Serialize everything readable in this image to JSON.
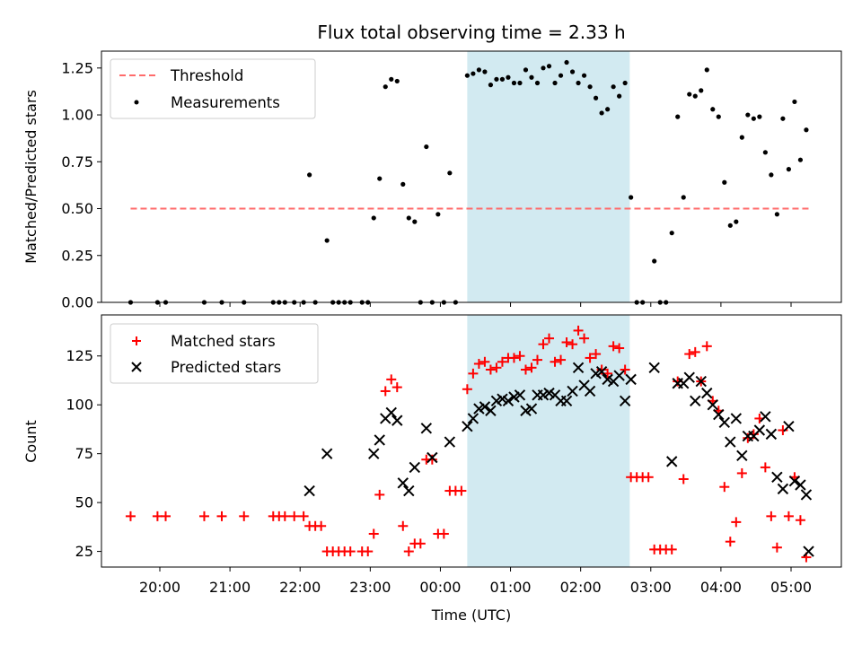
{
  "colors": {
    "threshold": "#ff6b6b",
    "measurements": "#000000",
    "matched": "#ff0000",
    "predicted": "#000000",
    "shade": "#add8e6"
  },
  "chart_data": [
    {
      "type": "scatter",
      "title": "Flux total observing time = 2.33 h",
      "xlabel": "",
      "ylabel": "Matched/Predicted stars",
      "ylim": [
        0,
        1.34
      ],
      "yticks": [
        "0.00",
        "0.25",
        "0.50",
        "0.75",
        "1.00",
        "1.25"
      ],
      "shaded_region": {
        "start": "00:23",
        "end": "02:42"
      },
      "threshold": {
        "name": "Threshold",
        "value": 0.5,
        "x_range": [
          "19:35",
          "05:15"
        ]
      },
      "legend": [
        "Threshold",
        "Measurements"
      ],
      "legend_position": "upper-left",
      "series": [
        {
          "name": "Measurements",
          "points": [
            [
              "19:35",
              0
            ],
            [
              "19:58",
              0
            ],
            [
              "20:05",
              0
            ],
            [
              "20:38",
              0
            ],
            [
              "20:53",
              0
            ],
            [
              "21:12",
              0
            ],
            [
              "21:37",
              0
            ],
            [
              "21:42",
              0
            ],
            [
              "21:47",
              0
            ],
            [
              "21:55",
              0
            ],
            [
              "22:03",
              0
            ],
            [
              "22:08",
              0.68
            ],
            [
              "22:13",
              0
            ],
            [
              "22:23",
              0.33
            ],
            [
              "22:28",
              0
            ],
            [
              "22:33",
              0
            ],
            [
              "22:38",
              0
            ],
            [
              "22:43",
              0
            ],
            [
              "22:53",
              0
            ],
            [
              "22:58",
              0
            ],
            [
              "23:03",
              0.45
            ],
            [
              "23:08",
              0.66
            ],
            [
              "23:13",
              1.15
            ],
            [
              "23:18",
              1.19
            ],
            [
              "23:23",
              1.18
            ],
            [
              "23:28",
              0.63
            ],
            [
              "23:33",
              0.45
            ],
            [
              "23:38",
              0.43
            ],
            [
              "23:43",
              0
            ],
            [
              "23:48",
              0.83
            ],
            [
              "23:53",
              0
            ],
            [
              "23:58",
              0.47
            ],
            [
              "00:03",
              0
            ],
            [
              "00:08",
              0.69
            ],
            [
              "00:13",
              0
            ],
            [
              "00:23",
              1.21
            ],
            [
              "00:28",
              1.22
            ],
            [
              "00:33",
              1.24
            ],
            [
              "00:38",
              1.23
            ],
            [
              "00:43",
              1.16
            ],
            [
              "00:48",
              1.19
            ],
            [
              "00:53",
              1.19
            ],
            [
              "00:58",
              1.2
            ],
            [
              "01:03",
              1.17
            ],
            [
              "01:08",
              1.17
            ],
            [
              "01:13",
              1.24
            ],
            [
              "01:18",
              1.2
            ],
            [
              "01:23",
              1.17
            ],
            [
              "01:28",
              1.25
            ],
            [
              "01:33",
              1.26
            ],
            [
              "01:38",
              1.17
            ],
            [
              "01:43",
              1.21
            ],
            [
              "01:48",
              1.28
            ],
            [
              "01:53",
              1.23
            ],
            [
              "01:58",
              1.17
            ],
            [
              "02:03",
              1.21
            ],
            [
              "02:08",
              1.15
            ],
            [
              "02:13",
              1.09
            ],
            [
              "02:18",
              1.01
            ],
            [
              "02:23",
              1.03
            ],
            [
              "02:28",
              1.15
            ],
            [
              "02:33",
              1.1
            ],
            [
              "02:38",
              1.17
            ],
            [
              "02:43",
              0.56
            ],
            [
              "02:48",
              0
            ],
            [
              "02:53",
              0
            ],
            [
              "03:03",
              0.22
            ],
            [
              "03:08",
              0
            ],
            [
              "03:13",
              0
            ],
            [
              "03:18",
              0.37
            ],
            [
              "03:23",
              0.99
            ],
            [
              "03:28",
              0.56
            ],
            [
              "03:33",
              1.11
            ],
            [
              "03:38",
              1.1
            ],
            [
              "03:43",
              1.13
            ],
            [
              "03:48",
              1.24
            ],
            [
              "03:53",
              1.03
            ],
            [
              "03:58",
              0.99
            ],
            [
              "04:03",
              0.64
            ],
            [
              "04:08",
              0.41
            ],
            [
              "04:13",
              0.43
            ],
            [
              "04:18",
              0.88
            ],
            [
              "04:23",
              1.0
            ],
            [
              "04:28",
              0.98
            ],
            [
              "04:33",
              0.99
            ],
            [
              "04:38",
              0.8
            ],
            [
              "04:43",
              0.68
            ],
            [
              "04:48",
              0.47
            ],
            [
              "04:53",
              0.98
            ],
            [
              "04:58",
              0.71
            ],
            [
              "05:03",
              1.07
            ],
            [
              "05:08",
              0.76
            ],
            [
              "05:13",
              0.92
            ]
          ]
        }
      ]
    },
    {
      "type": "scatter",
      "title": "",
      "xlabel": "Time (UTC)",
      "ylabel": "Count",
      "ylim": [
        17,
        146
      ],
      "yticks": [
        "25",
        "50",
        "75",
        "100",
        "125"
      ],
      "xticks": [
        "20:00",
        "21:00",
        "22:00",
        "23:00",
        "00:00",
        "01:00",
        "02:00",
        "03:00",
        "04:00",
        "05:00"
      ],
      "shaded_region": {
        "start": "00:23",
        "end": "02:42"
      },
      "legend": [
        "Matched stars",
        "Predicted stars"
      ],
      "legend_position": "upper-left",
      "series": [
        {
          "name": "Matched stars",
          "points": [
            [
              "19:35",
              43
            ],
            [
              "19:58",
              43
            ],
            [
              "20:05",
              43
            ],
            [
              "20:38",
              43
            ],
            [
              "20:53",
              43
            ],
            [
              "21:12",
              43
            ],
            [
              "21:37",
              43
            ],
            [
              "21:42",
              43
            ],
            [
              "21:47",
              43
            ],
            [
              "21:55",
              43
            ],
            [
              "22:03",
              43
            ],
            [
              "22:08",
              38
            ],
            [
              "22:13",
              38
            ],
            [
              "22:18",
              38
            ],
            [
              "22:23",
              25
            ],
            [
              "22:28",
              25
            ],
            [
              "22:33",
              25
            ],
            [
              "22:38",
              25
            ],
            [
              "22:43",
              25
            ],
            [
              "22:53",
              25
            ],
            [
              "22:58",
              25
            ],
            [
              "23:03",
              34
            ],
            [
              "23:08",
              54
            ],
            [
              "23:13",
              107
            ],
            [
              "23:18",
              113
            ],
            [
              "23:23",
              109
            ],
            [
              "23:28",
              38
            ],
            [
              "23:33",
              25
            ],
            [
              "23:38",
              29
            ],
            [
              "23:43",
              29
            ],
            [
              "23:48",
              72
            ],
            [
              "23:53",
              72
            ],
            [
              "23:58",
              34
            ],
            [
              "00:03",
              34
            ],
            [
              "00:08",
              56
            ],
            [
              "00:13",
              56
            ],
            [
              "00:18",
              56
            ],
            [
              "00:23",
              108
            ],
            [
              "00:28",
              116
            ],
            [
              "00:33",
              121
            ],
            [
              "00:38",
              122
            ],
            [
              "00:43",
              118
            ],
            [
              "00:48",
              119
            ],
            [
              "00:53",
              122
            ],
            [
              "00:58",
              124
            ],
            [
              "01:03",
              124
            ],
            [
              "01:08",
              125
            ],
            [
              "01:13",
              118
            ],
            [
              "01:18",
              119
            ],
            [
              "01:23",
              123
            ],
            [
              "01:28",
              131
            ],
            [
              "01:33",
              134
            ],
            [
              "01:38",
              122
            ],
            [
              "01:43",
              123
            ],
            [
              "01:48",
              132
            ],
            [
              "01:53",
              131
            ],
            [
              "01:58",
              138
            ],
            [
              "02:03",
              134
            ],
            [
              "02:08",
              124
            ],
            [
              "02:13",
              126
            ],
            [
              "02:18",
              118
            ],
            [
              "02:23",
              116
            ],
            [
              "02:28",
              130
            ],
            [
              "02:33",
              129
            ],
            [
              "02:38",
              118
            ],
            [
              "02:43",
              63
            ],
            [
              "02:48",
              63
            ],
            [
              "02:53",
              63
            ],
            [
              "02:58",
              63
            ],
            [
              "03:03",
              26
            ],
            [
              "03:08",
              26
            ],
            [
              "03:13",
              26
            ],
            [
              "03:18",
              26
            ],
            [
              "03:23",
              112
            ],
            [
              "03:28",
              62
            ],
            [
              "03:33",
              126
            ],
            [
              "03:38",
              127
            ],
            [
              "03:43",
              112
            ],
            [
              "03:48",
              130
            ],
            [
              "03:53",
              102
            ],
            [
              "03:58",
              97
            ],
            [
              "04:03",
              58
            ],
            [
              "04:08",
              30
            ],
            [
              "04:13",
              40
            ],
            [
              "04:18",
              65
            ],
            [
              "04:23",
              83
            ],
            [
              "04:28",
              85
            ],
            [
              "04:33",
              93
            ],
            [
              "04:38",
              68
            ],
            [
              "04:43",
              43
            ],
            [
              "04:48",
              27
            ],
            [
              "04:53",
              87
            ],
            [
              "04:58",
              43
            ],
            [
              "05:03",
              63
            ],
            [
              "05:08",
              41
            ],
            [
              "05:13",
              22
            ]
          ]
        },
        {
          "name": "Predicted stars",
          "points": [
            [
              "22:08",
              56
            ],
            [
              "22:23",
              75
            ],
            [
              "23:03",
              75
            ],
            [
              "23:08",
              82
            ],
            [
              "23:13",
              93
            ],
            [
              "23:18",
              96
            ],
            [
              "23:23",
              92
            ],
            [
              "23:28",
              60
            ],
            [
              "23:33",
              56
            ],
            [
              "23:38",
              68
            ],
            [
              "23:48",
              88
            ],
            [
              "23:53",
              73
            ],
            [
              "00:08",
              81
            ],
            [
              "00:23",
              89
            ],
            [
              "00:28",
              93
            ],
            [
              "00:33",
              98
            ],
            [
              "00:38",
              99
            ],
            [
              "00:43",
              97
            ],
            [
              "00:48",
              102
            ],
            [
              "00:53",
              103
            ],
            [
              "00:58",
              102
            ],
            [
              "01:03",
              104
            ],
            [
              "01:08",
              105
            ],
            [
              "01:13",
              97
            ],
            [
              "01:18",
              98
            ],
            [
              "01:23",
              105
            ],
            [
              "01:28",
              105
            ],
            [
              "01:33",
              106
            ],
            [
              "01:38",
              105
            ],
            [
              "01:43",
              102
            ],
            [
              "01:48",
              102
            ],
            [
              "01:53",
              107
            ],
            [
              "01:58",
              119
            ],
            [
              "02:03",
              110
            ],
            [
              "02:08",
              107
            ],
            [
              "02:13",
              116
            ],
            [
              "02:18",
              117
            ],
            [
              "02:23",
              113
            ],
            [
              "02:28",
              112
            ],
            [
              "02:33",
              115
            ],
            [
              "02:38",
              102
            ],
            [
              "02:43",
              113
            ],
            [
              "03:03",
              119
            ],
            [
              "03:18",
              71
            ],
            [
              "03:23",
              111
            ],
            [
              "03:28",
              111
            ],
            [
              "03:33",
              114
            ],
            [
              "03:38",
              102
            ],
            [
              "03:43",
              112
            ],
            [
              "03:48",
              106
            ],
            [
              "03:53",
              100
            ],
            [
              "03:58",
              95
            ],
            [
              "04:03",
              91
            ],
            [
              "04:08",
              81
            ],
            [
              "04:13",
              93
            ],
            [
              "04:18",
              74
            ],
            [
              "04:23",
              84
            ],
            [
              "04:28",
              84
            ],
            [
              "04:33",
              87
            ],
            [
              "04:38",
              94
            ],
            [
              "04:43",
              85
            ],
            [
              "04:48",
              63
            ],
            [
              "04:53",
              57
            ],
            [
              "04:58",
              89
            ],
            [
              "05:03",
              61
            ],
            [
              "05:08",
              59
            ],
            [
              "05:13",
              54
            ],
            [
              "05:15",
              25
            ]
          ]
        }
      ]
    }
  ]
}
